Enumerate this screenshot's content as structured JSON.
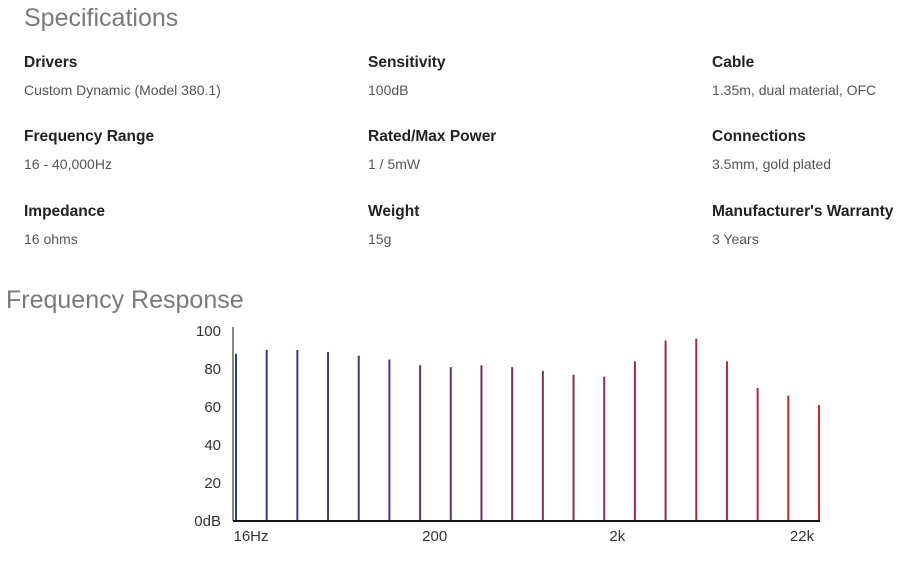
{
  "specifications": {
    "title": "Specifications",
    "items": [
      {
        "label": "Drivers",
        "value": "Custom Dynamic (Model 380.1)"
      },
      {
        "label": "Sensitivity",
        "value": "100dB"
      },
      {
        "label": "Cable",
        "value": "1.35m, dual material, OFC"
      },
      {
        "label": "Frequency Range",
        "value": "16 - 40,000Hz"
      },
      {
        "label": "Rated/Max Power",
        "value": "1 / 5mW"
      },
      {
        "label": "Connections",
        "value": "3.5mm, gold plated"
      },
      {
        "label": "Impedance",
        "value": "16 ohms"
      },
      {
        "label": "Weight",
        "value": "15g"
      },
      {
        "label": "Manufacturer's Warranty",
        "value": "3 Years"
      }
    ]
  },
  "frequency_response": {
    "title": "Frequency Response"
  },
  "colors": {
    "start": "#2d3a8c",
    "end": "#c0282d",
    "axis": "#111111"
  },
  "chart_data": {
    "type": "bar",
    "title": "Frequency Response",
    "xlabel": "",
    "ylabel": "",
    "ylim": [
      0,
      100
    ],
    "y_ticks": [
      "0dB",
      "20",
      "40",
      "60",
      "80",
      "100"
    ],
    "x_tick_labels": [
      "16Hz",
      "200",
      "2k",
      "22k"
    ],
    "values": [
      88,
      90,
      90,
      89,
      87,
      85,
      82,
      81,
      82,
      81,
      79,
      77,
      76,
      84,
      95,
      96,
      84,
      70,
      66,
      61
    ],
    "grid": false
  }
}
